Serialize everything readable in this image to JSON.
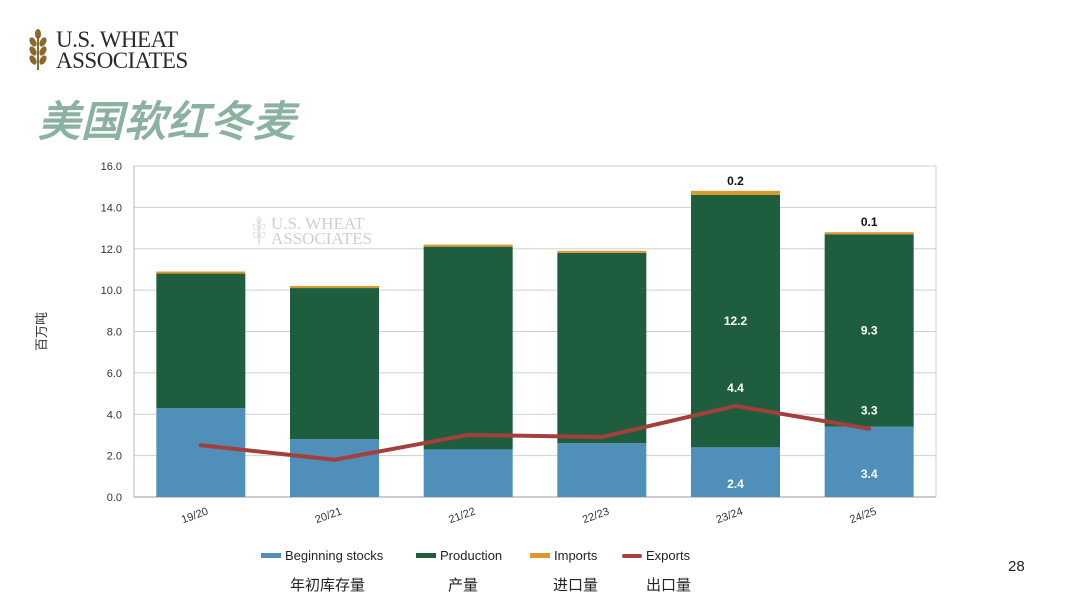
{
  "logo": {
    "line1": "U.S. WHEAT",
    "line2": "ASSOCIATES"
  },
  "slide_title": "美国软红冬麦",
  "page_number": "28",
  "colors": {
    "beginning": "#4f8fba",
    "production": "#1e5e3e",
    "imports": "#d99a2b",
    "exports": "#a3403c",
    "title": "#8bb1a0"
  },
  "legend": [
    {
      "label": "Beginning stocks",
      "cn": "年初库存量"
    },
    {
      "label": "Production",
      "cn": "产量"
    },
    {
      "label": "Imports",
      "cn": "进口量"
    },
    {
      "label": "Exports",
      "cn": "出口量"
    }
  ],
  "chart_data": {
    "type": "bar",
    "stacked": true,
    "categories": [
      "19/20",
      "20/21",
      "21/22",
      "22/23",
      "23/24",
      "24/25"
    ],
    "series": [
      {
        "name": "Beginning stocks",
        "values": [
          4.3,
          2.8,
          2.3,
          2.6,
          2.4,
          3.4
        ]
      },
      {
        "name": "Production",
        "values": [
          6.5,
          7.3,
          9.8,
          9.2,
          12.2,
          9.3
        ]
      },
      {
        "name": "Imports",
        "values": [
          0.1,
          0.1,
          0.1,
          0.1,
          0.2,
          0.1
        ]
      },
      {
        "name": "Exports",
        "type": "line",
        "values": [
          2.5,
          1.8,
          3.0,
          2.9,
          4.4,
          3.3
        ]
      }
    ],
    "data_labels": [
      {
        "category": "23/24",
        "series": "Imports",
        "text": "0.2"
      },
      {
        "category": "23/24",
        "series": "Production",
        "text": "12.2"
      },
      {
        "category": "23/24",
        "series": "Exports",
        "text": "4.4"
      },
      {
        "category": "23/24",
        "series": "Beginning stocks",
        "text": "2.4"
      },
      {
        "category": "24/25",
        "series": "Imports",
        "text": "0.1"
      },
      {
        "category": "24/25",
        "series": "Production",
        "text": "9.3"
      },
      {
        "category": "24/25",
        "series": "Exports",
        "text": "3.3"
      },
      {
        "category": "24/25",
        "series": "Beginning stocks",
        "text": "3.4"
      }
    ],
    "ylabel": "百万吨",
    "ylim": [
      0,
      16
    ],
    "yticks": [
      "0.0",
      "2.0",
      "4.0",
      "6.0",
      "8.0",
      "10.0",
      "12.0",
      "14.0",
      "16.0"
    ],
    "grid": true,
    "legend_position": "bottom"
  }
}
